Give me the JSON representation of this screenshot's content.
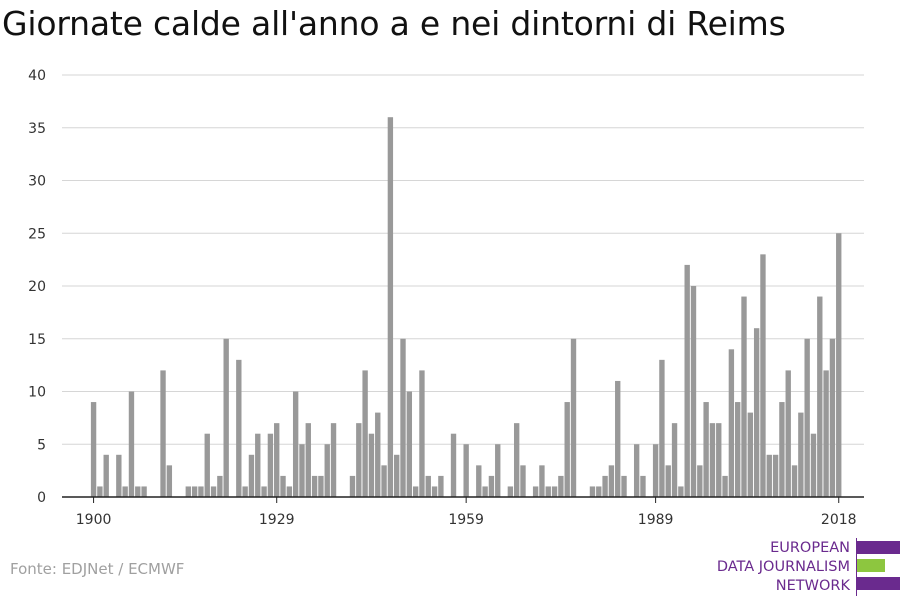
{
  "header": {
    "title": "Giornate calde all'anno a e nei dintorni di Reims"
  },
  "footer": {
    "source": "Fonte: EDJNet / ECMWF"
  },
  "logo": {
    "line1": "EUROPEAN",
    "line2": "DATA JOURNALISM",
    "line3": "NETWORK",
    "colors": {
      "purple": "#6a2a8e",
      "green": "#8dc63f"
    }
  },
  "chart_data": {
    "type": "bar",
    "title": "Giornate calde all'anno a e nei dintorni di Reims",
    "xlabel": "",
    "ylabel": "",
    "ylim": [
      0,
      40
    ],
    "yticks": [
      0,
      5,
      10,
      15,
      20,
      25,
      30,
      35,
      40
    ],
    "xticks": [
      1900,
      1929,
      1959,
      1989,
      2018
    ],
    "xlim": [
      1895,
      2022
    ],
    "grid": true,
    "bar_color": "#999999",
    "x": [
      1900,
      1901,
      1902,
      1903,
      1904,
      1905,
      1906,
      1907,
      1908,
      1909,
      1910,
      1911,
      1912,
      1913,
      1914,
      1915,
      1916,
      1917,
      1918,
      1919,
      1920,
      1921,
      1922,
      1923,
      1924,
      1925,
      1926,
      1927,
      1928,
      1929,
      1930,
      1931,
      1932,
      1933,
      1934,
      1935,
      1936,
      1937,
      1938,
      1939,
      1940,
      1941,
      1942,
      1943,
      1944,
      1945,
      1946,
      1947,
      1948,
      1949,
      1950,
      1951,
      1952,
      1953,
      1954,
      1955,
      1956,
      1957,
      1958,
      1959,
      1960,
      1961,
      1962,
      1963,
      1964,
      1965,
      1966,
      1967,
      1968,
      1969,
      1970,
      1971,
      1972,
      1973,
      1974,
      1975,
      1976,
      1977,
      1978,
      1979,
      1980,
      1981,
      1982,
      1983,
      1984,
      1985,
      1986,
      1987,
      1988,
      1989,
      1990,
      1991,
      1992,
      1993,
      1994,
      1995,
      1996,
      1997,
      1998,
      1999,
      2000,
      2001,
      2002,
      2003,
      2004,
      2005,
      2006,
      2007,
      2008,
      2009,
      2010,
      2011,
      2012,
      2013,
      2014,
      2015,
      2016,
      2017,
      2018
    ],
    "values": [
      9,
      1,
      4,
      0,
      4,
      1,
      10,
      1,
      1,
      0,
      0,
      12,
      3,
      0,
      0,
      1,
      1,
      1,
      6,
      1,
      2,
      15,
      0,
      13,
      1,
      4,
      6,
      1,
      6,
      7,
      2,
      1,
      10,
      5,
      7,
      2,
      2,
      5,
      7,
      0,
      0,
      2,
      7,
      12,
      6,
      8,
      3,
      36,
      4,
      15,
      10,
      1,
      12,
      2,
      1,
      2,
      0,
      6,
      0,
      5,
      0,
      3,
      1,
      2,
      5,
      0,
      1,
      7,
      3,
      0,
      1,
      3,
      1,
      1,
      2,
      9,
      15,
      0,
      0,
      1,
      1,
      2,
      3,
      11,
      2,
      0,
      5,
      2,
      0,
      5,
      13,
      3,
      7,
      1,
      22,
      20,
      3,
      9,
      7,
      7,
      2,
      14,
      9,
      19,
      8,
      16,
      23,
      4,
      4,
      9,
      12,
      3,
      8,
      15,
      6,
      19,
      12,
      15,
      25
    ]
  }
}
